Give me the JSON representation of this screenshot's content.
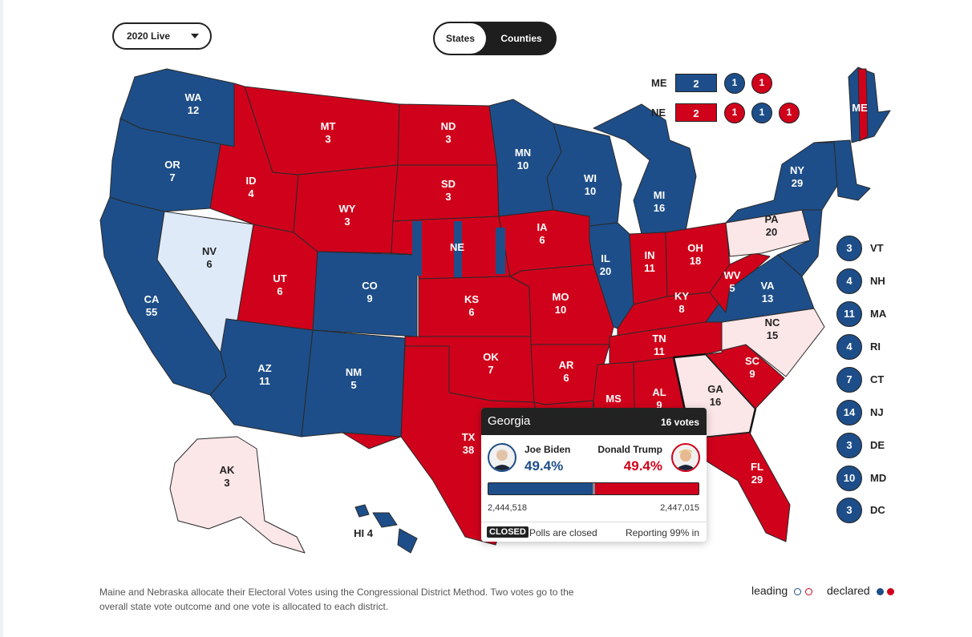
{
  "controls": {
    "year_select": "2020 Live",
    "toggle_states": "States",
    "toggle_counties": "Counties"
  },
  "colors": {
    "dem": "#1d4e89",
    "rep": "#d0021b",
    "lean_dem": "#deeaf8",
    "lean_rep": "#fbe6e8"
  },
  "states": {
    "WA": {
      "label": "WA",
      "votes": "12",
      "status": "dem"
    },
    "OR": {
      "label": "OR",
      "votes": "7",
      "status": "dem"
    },
    "CA": {
      "label": "CA",
      "votes": "55",
      "status": "dem"
    },
    "NV": {
      "label": "NV",
      "votes": "6",
      "status": "lean_dem"
    },
    "ID": {
      "label": "ID",
      "votes": "4",
      "status": "rep"
    },
    "MT": {
      "label": "MT",
      "votes": "3",
      "status": "rep"
    },
    "WY": {
      "label": "WY",
      "votes": "3",
      "status": "rep"
    },
    "UT": {
      "label": "UT",
      "votes": "6",
      "status": "rep"
    },
    "CO": {
      "label": "CO",
      "votes": "9",
      "status": "dem"
    },
    "AZ": {
      "label": "AZ",
      "votes": "11",
      "status": "dem"
    },
    "NM": {
      "label": "NM",
      "votes": "5",
      "status": "dem"
    },
    "ND": {
      "label": "ND",
      "votes": "3",
      "status": "rep"
    },
    "SD": {
      "label": "SD",
      "votes": "3",
      "status": "rep"
    },
    "NE": {
      "label": "NE",
      "votes": "",
      "status": "rep"
    },
    "KS": {
      "label": "KS",
      "votes": "6",
      "status": "rep"
    },
    "OK": {
      "label": "OK",
      "votes": "7",
      "status": "rep"
    },
    "TX": {
      "label": "TX",
      "votes": "38",
      "status": "rep"
    },
    "MN": {
      "label": "MN",
      "votes": "10",
      "status": "dem"
    },
    "IA": {
      "label": "IA",
      "votes": "6",
      "status": "rep"
    },
    "MO": {
      "label": "MO",
      "votes": "10",
      "status": "rep"
    },
    "AR": {
      "label": "AR",
      "votes": "6",
      "status": "rep"
    },
    "LA": {
      "label": "",
      "votes": "",
      "status": "rep"
    },
    "WI": {
      "label": "WI",
      "votes": "10",
      "status": "dem"
    },
    "IL": {
      "label": "IL",
      "votes": "20",
      "status": "dem"
    },
    "MI": {
      "label": "MI",
      "votes": "16",
      "status": "dem"
    },
    "IN": {
      "label": "IN",
      "votes": "11",
      "status": "rep"
    },
    "OH": {
      "label": "OH",
      "votes": "18",
      "status": "rep"
    },
    "KY": {
      "label": "KY",
      "votes": "8",
      "status": "rep"
    },
    "TN": {
      "label": "TN",
      "votes": "11",
      "status": "rep"
    },
    "MS": {
      "label": "MS",
      "votes": "",
      "status": "rep"
    },
    "AL": {
      "label": "AL",
      "votes": "9",
      "status": "rep"
    },
    "GA": {
      "label": "GA",
      "votes": "16",
      "status": "lean_rep"
    },
    "FL": {
      "label": "FL",
      "votes": "29",
      "status": "rep"
    },
    "SC": {
      "label": "SC",
      "votes": "9",
      "status": "rep"
    },
    "NC": {
      "label": "NC",
      "votes": "15",
      "status": "lean_rep"
    },
    "VA": {
      "label": "VA",
      "votes": "13",
      "status": "dem"
    },
    "WV": {
      "label": "WV",
      "votes": "5",
      "status": "rep"
    },
    "PA": {
      "label": "PA",
      "votes": "20",
      "status": "lean_rep"
    },
    "NY": {
      "label": "NY",
      "votes": "29",
      "status": "dem"
    },
    "ME": {
      "label": "ME",
      "votes": "",
      "status": "dem"
    },
    "AK": {
      "label": "AK",
      "votes": "3",
      "status": "lean_rep"
    },
    "HI": {
      "label": "HI 4",
      "votes": "",
      "status": "dem"
    }
  },
  "districts": {
    "ME": {
      "label": "ME",
      "statewide": "2",
      "d1": "1",
      "d2": "1"
    },
    "NE": {
      "label": "NE",
      "statewide": "2",
      "d1": "1",
      "d2": "1",
      "d3": "1"
    }
  },
  "small_states": [
    {
      "name": "VT",
      "votes": "3"
    },
    {
      "name": "NH",
      "votes": "4"
    },
    {
      "name": "MA",
      "votes": "11"
    },
    {
      "name": "RI",
      "votes": "4"
    },
    {
      "name": "CT",
      "votes": "7"
    },
    {
      "name": "NJ",
      "votes": "14"
    },
    {
      "name": "DE",
      "votes": "3"
    },
    {
      "name": "MD",
      "votes": "10"
    },
    {
      "name": "DC",
      "votes": "3"
    }
  ],
  "tooltip": {
    "state": "Georgia",
    "votes": "16 votes",
    "dem_name": "Joe Biden",
    "dem_pct": "49.4%",
    "dem_count": "2,444,518",
    "rep_name": "Donald Trump",
    "rep_pct": "49.4%",
    "rep_count": "2,447,015",
    "dem_share": 49.97,
    "badge": "CLOSED",
    "polls_text": "Polls are closed",
    "reporting": "Reporting 99% in"
  },
  "note": "Maine and Nebraska allocate their Electoral Votes using the Congressional District Method. Two votes go to the overall state vote outcome and one vote is allocated to each district.",
  "legend": {
    "leading": "leading",
    "declared": "declared"
  }
}
